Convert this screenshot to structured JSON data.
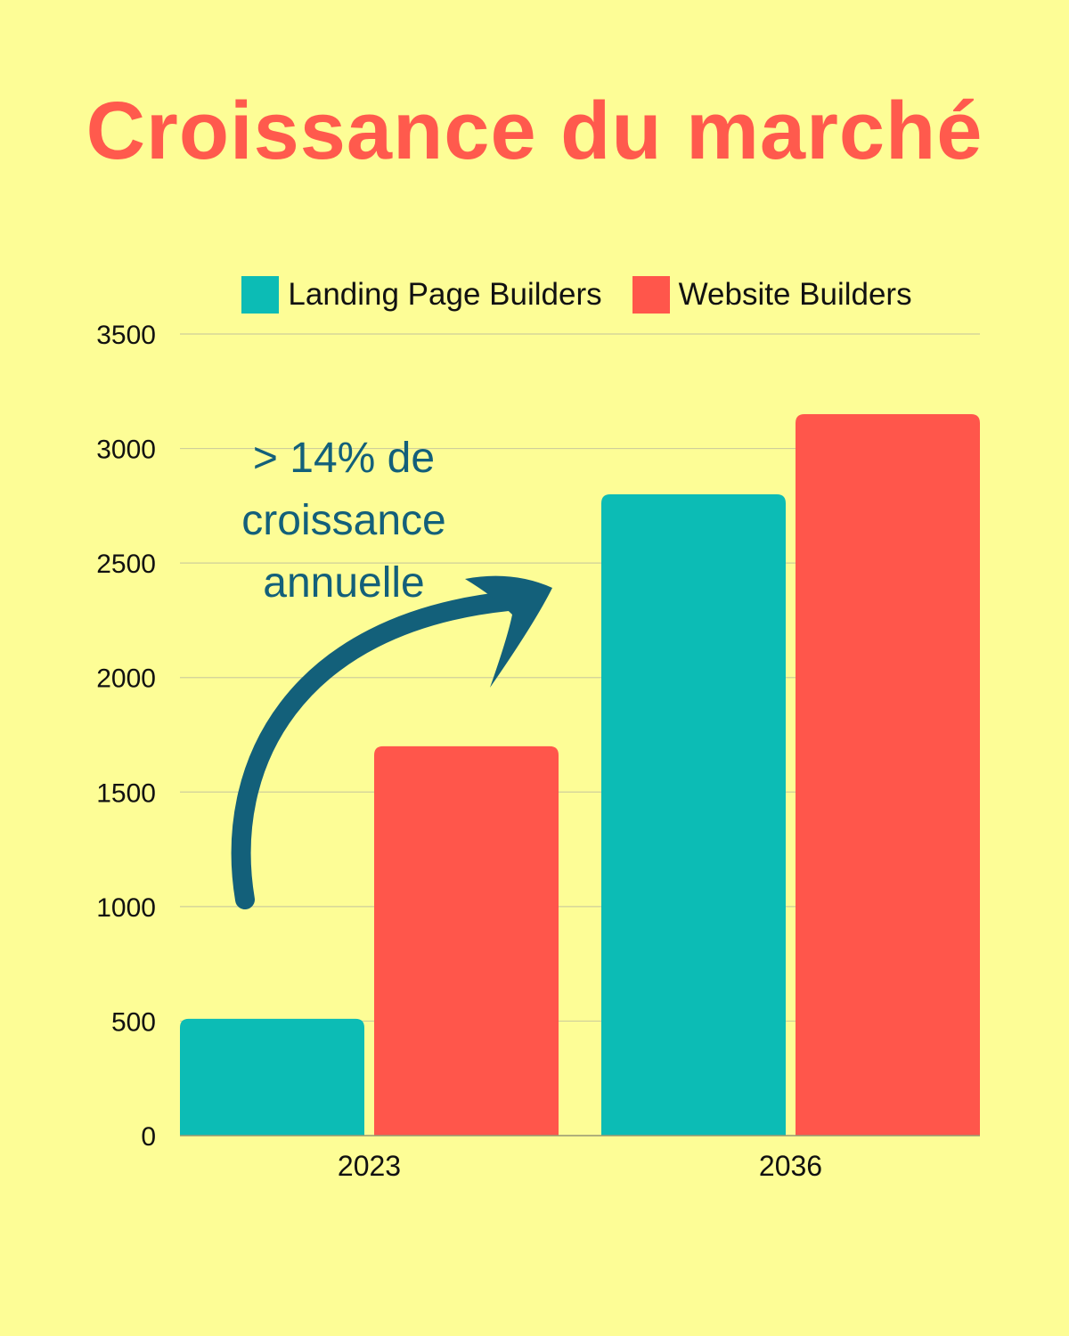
{
  "page": {
    "title": "Croissance du marché",
    "annotation_line1": "> 14% de",
    "annotation_line2": "croissance",
    "annotation_line3": "annuelle",
    "arrow_icon": "curved-arrow-icon"
  },
  "colors": {
    "background": "#fdfd96",
    "title": "#ff5a4d",
    "landing": "#0cbcb5",
    "website": "#ff564b",
    "annotation": "#13607a",
    "grid": "#cfcf9a"
  },
  "chart_data": {
    "type": "bar",
    "categories": [
      "2023",
      "2036"
    ],
    "series": [
      {
        "name": "Landing Page Builders",
        "values": [
          510,
          2800
        ]
      },
      {
        "name": "Website Builders",
        "values": [
          1700,
          3150
        ]
      }
    ],
    "yticks": [
      "0",
      "500",
      "1000",
      "1500",
      "2000",
      "2500",
      "3000",
      "3500"
    ],
    "ylim": [
      0,
      3500
    ],
    "grid": true,
    "legend": "top"
  }
}
